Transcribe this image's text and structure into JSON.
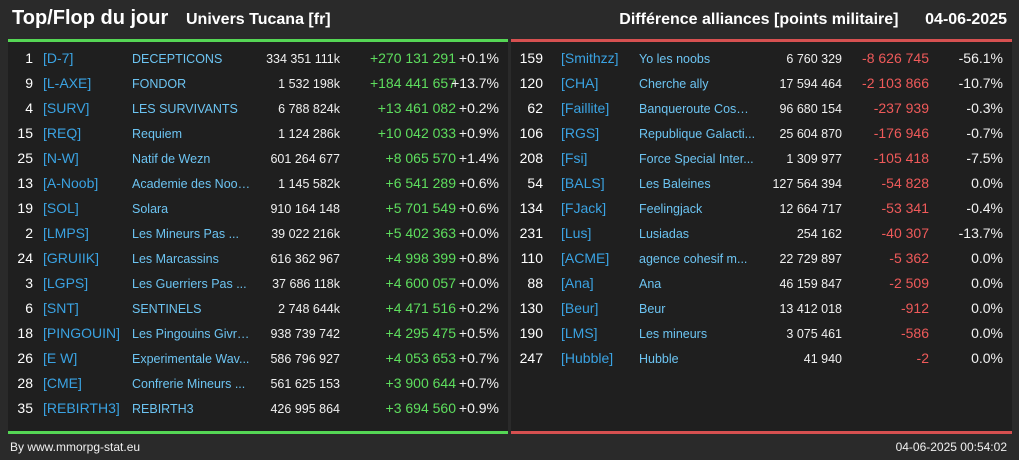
{
  "header": {
    "title": "Top/Flop du jour",
    "subtitle": "Univers Tucana [fr]",
    "right_title": "Différence alliances [points militaire]      04-06-2025"
  },
  "colors": {
    "positive": "#5ede5e",
    "negative": "#ef5a5a",
    "tag": "#3aa3e3",
    "name": "#6cc4f2",
    "top_bar": "#55d655",
    "flop_bar": "#d65050"
  },
  "top": [
    {
      "rank": "1",
      "tag": "[D-7]",
      "name": "DECEPTICONS",
      "points": "334 351 111k",
      "diff": "+270 131 291",
      "pct": "+0.1%"
    },
    {
      "rank": "9",
      "tag": "[L-AXE]",
      "name": "FONDOR",
      "points": "1 532 198k",
      "diff": "+184 441 657",
      "pct": "+13.7%"
    },
    {
      "rank": "4",
      "tag": "[SURV]",
      "name": "LES SURVIVANTS",
      "points": "6 788 824k",
      "diff": "+13 461 082",
      "pct": "+0.2%"
    },
    {
      "rank": "15",
      "tag": "[REQ]",
      "name": "Requiem",
      "points": "1 124 286k",
      "diff": "+10 042 033",
      "pct": "+0.9%"
    },
    {
      "rank": "25",
      "tag": "[N-W]",
      "name": "Natif de Wezn",
      "points": "601 264 677",
      "diff": "+8 065 570",
      "pct": "+1.4%"
    },
    {
      "rank": "13",
      "tag": "[A-Noob]",
      "name": "Academie des Noob...",
      "points": "1 145 582k",
      "diff": "+6 541 289",
      "pct": "+0.6%"
    },
    {
      "rank": "19",
      "tag": "[SOL]",
      "name": "Solara",
      "points": "910 164 148",
      "diff": "+5 701 549",
      "pct": "+0.6%"
    },
    {
      "rank": "2",
      "tag": "[LMPS]",
      "name": "Les Mineurs Pas ...",
      "points": "39 022 216k",
      "diff": "+5 402 363",
      "pct": "+0.0%"
    },
    {
      "rank": "24",
      "tag": "[GRUIIK]",
      "name": "Les Marcassins",
      "points": "616 362 967",
      "diff": "+4 998 399",
      "pct": "+0.8%"
    },
    {
      "rank": "3",
      "tag": "[LGPS]",
      "name": "Les Guerriers Pas ...",
      "points": "37 686 118k",
      "diff": "+4 600 057",
      "pct": "+0.0%"
    },
    {
      "rank": "6",
      "tag": "[SNT]",
      "name": "SENTINELS",
      "points": "2 748 644k",
      "diff": "+4 471 516",
      "pct": "+0.2%"
    },
    {
      "rank": "18",
      "tag": "[PINGOUIN]",
      "name": "Les Pingouins Givre...",
      "points": "938 739 742",
      "diff": "+4 295 475",
      "pct": "+0.5%"
    },
    {
      "rank": "26",
      "tag": "[E W]",
      "name": "Experimentale Wav...",
      "points": "586 796 927",
      "diff": "+4 053 653",
      "pct": "+0.7%"
    },
    {
      "rank": "28",
      "tag": "[CME]",
      "name": "Confrerie Mineurs ...",
      "points": "561 625 153",
      "diff": "+3 900 644",
      "pct": "+0.7%"
    },
    {
      "rank": "35",
      "tag": "[REBIRTH3]",
      "name": "REBIRTH3",
      "points": "426 995 864",
      "diff": "+3 694 560",
      "pct": "+0.9%"
    }
  ],
  "flop": [
    {
      "rank": "159",
      "tag": "[Smithzz]",
      "name": "Yo les noobs",
      "points": "6 760 329",
      "diff": "-8 626 745",
      "pct": "-56.1%"
    },
    {
      "rank": "120",
      "tag": "[CHA]",
      "name": "Cherche ally",
      "points": "17 594 464",
      "diff": "-2 103 866",
      "pct": "-10.7%"
    },
    {
      "rank": "62",
      "tag": "[Faillite]",
      "name": "Banqueroute Cosm...",
      "points": "96 680 154",
      "diff": "-237 939",
      "pct": "-0.3%"
    },
    {
      "rank": "106",
      "tag": "[RGS]",
      "name": "Republique Galacti...",
      "points": "25 604 870",
      "diff": "-176 946",
      "pct": "-0.7%"
    },
    {
      "rank": "208",
      "tag": "[Fsi]",
      "name": "Force Special Inter...",
      "points": "1 309 977",
      "diff": "-105 418",
      "pct": "-7.5%"
    },
    {
      "rank": "54",
      "tag": "[BALS]",
      "name": "Les Baleines",
      "points": "127 564 394",
      "diff": "-54 828",
      "pct": "0.0%"
    },
    {
      "rank": "134",
      "tag": "[FJack]",
      "name": "Feelingjack",
      "points": "12 664 717",
      "diff": "-53 341",
      "pct": "-0.4%"
    },
    {
      "rank": "231",
      "tag": "[Lus]",
      "name": "Lusiadas",
      "points": "254 162",
      "diff": "-40 307",
      "pct": "-13.7%"
    },
    {
      "rank": "110",
      "tag": "[ACME]",
      "name": "agence cohesif m...",
      "points": "22 729 897",
      "diff": "-5 362",
      "pct": "0.0%"
    },
    {
      "rank": "88",
      "tag": "[Ana]",
      "name": "Ana",
      "points": "46 159 847",
      "diff": "-2 509",
      "pct": "0.0%"
    },
    {
      "rank": "130",
      "tag": "[Beur]",
      "name": "Beur",
      "points": "13 412 018",
      "diff": "-912",
      "pct": "0.0%"
    },
    {
      "rank": "190",
      "tag": "[LMS]",
      "name": "Les mineurs",
      "points": "3 075 461",
      "diff": "-586",
      "pct": "0.0%"
    },
    {
      "rank": "247",
      "tag": "[Hubble]",
      "name": "Hubble",
      "points": "41 940",
      "diff": "-2",
      "pct": "0.0%"
    }
  ],
  "footer": {
    "left": "By www.mmorpg-stat.eu",
    "right": "04-06-2025 00:54:02"
  }
}
